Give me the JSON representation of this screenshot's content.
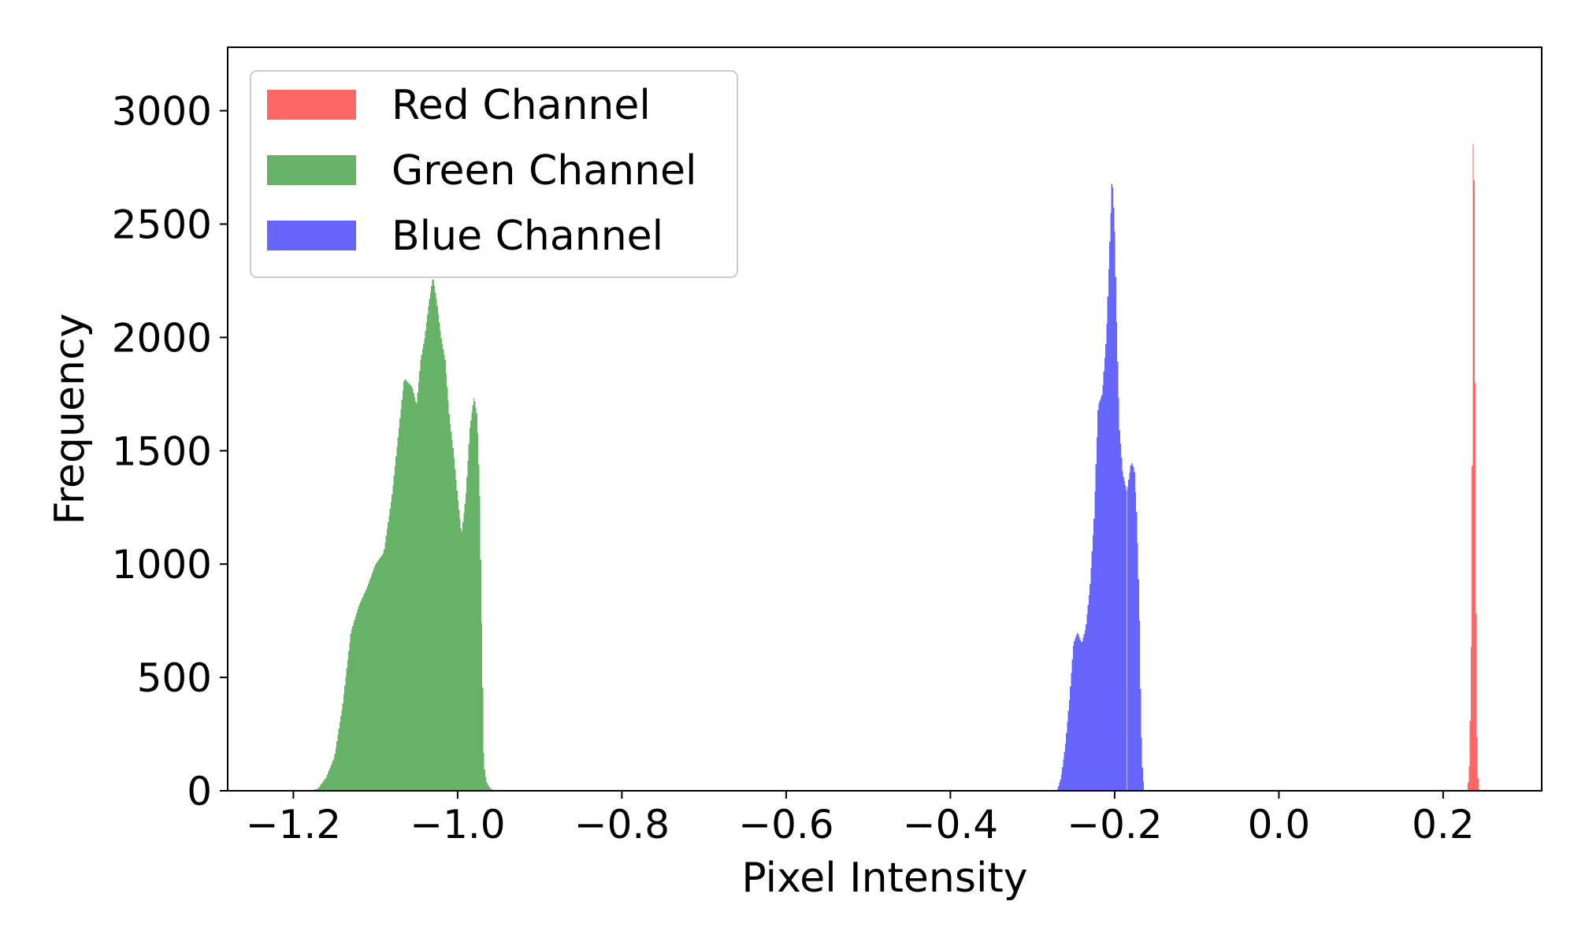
{
  "chart_data": {
    "type": "histogram",
    "title": "",
    "xlabel": "Pixel Intensity",
    "ylabel": "Frequency",
    "xlim": [
      -1.28,
      0.32
    ],
    "ylim": [
      0,
      3280
    ],
    "x_ticks": [
      -1.2,
      -1.0,
      -0.8,
      -0.6,
      -0.4,
      -0.2,
      0.0,
      0.2
    ],
    "x_tick_labels": [
      "−1.2",
      "−1.0",
      "−0.8",
      "−0.6",
      "−0.4",
      "−0.2",
      "0.0",
      "0.2"
    ],
    "y_ticks": [
      0,
      500,
      1000,
      1500,
      2000,
      2500,
      3000
    ],
    "y_tick_labels": [
      "0",
      "500",
      "1000",
      "1500",
      "2000",
      "2500",
      "3000"
    ],
    "grid": false,
    "legend_position": "top-left",
    "series": [
      {
        "name": "Red Channel",
        "color": "#ff6666",
        "profile": [
          [
            0.23,
            0
          ],
          [
            0.232,
            120
          ],
          [
            0.234,
            500
          ],
          [
            0.2355,
            1500
          ],
          [
            0.2365,
            2800
          ],
          [
            0.237,
            3060
          ],
          [
            0.238,
            2600
          ],
          [
            0.239,
            1800
          ],
          [
            0.24,
            900
          ],
          [
            0.241,
            300
          ],
          [
            0.2425,
            60
          ],
          [
            0.244,
            0
          ]
        ]
      },
      {
        "name": "Green Channel",
        "color": "#66b266",
        "profile": [
          [
            -1.18,
            0
          ],
          [
            -1.17,
            10
          ],
          [
            -1.16,
            60
          ],
          [
            -1.15,
            150
          ],
          [
            -1.14,
            380
          ],
          [
            -1.13,
            700
          ],
          [
            -1.12,
            820
          ],
          [
            -1.11,
            900
          ],
          [
            -1.1,
            1000
          ],
          [
            -1.09,
            1050
          ],
          [
            -1.08,
            1300
          ],
          [
            -1.07,
            1650
          ],
          [
            -1.065,
            1820
          ],
          [
            -1.06,
            1800
          ],
          [
            -1.055,
            1780
          ],
          [
            -1.05,
            1700
          ],
          [
            -1.045,
            1900
          ],
          [
            -1.04,
            2000
          ],
          [
            -1.035,
            2150
          ],
          [
            -1.03,
            2270
          ],
          [
            -1.025,
            2150
          ],
          [
            -1.02,
            2000
          ],
          [
            -1.015,
            1900
          ],
          [
            -1.01,
            1650
          ],
          [
            -1.005,
            1500
          ],
          [
            -1.0,
            1300
          ],
          [
            -0.995,
            1130
          ],
          [
            -0.99,
            1300
          ],
          [
            -0.985,
            1600
          ],
          [
            -0.98,
            1740
          ],
          [
            -0.976,
            1650
          ],
          [
            -0.973,
            1300
          ],
          [
            -0.97,
            600
          ],
          [
            -0.968,
            120
          ],
          [
            -0.965,
            40
          ],
          [
            -0.96,
            10
          ],
          [
            -0.955,
            0
          ]
        ]
      },
      {
        "name": "Blue Channel",
        "color": "#6666ff",
        "profile": [
          [
            -0.27,
            0
          ],
          [
            -0.265,
            60
          ],
          [
            -0.26,
            200
          ],
          [
            -0.255,
            400
          ],
          [
            -0.25,
            650
          ],
          [
            -0.245,
            700
          ],
          [
            -0.24,
            650
          ],
          [
            -0.235,
            720
          ],
          [
            -0.23,
            900
          ],
          [
            -0.225,
            1200
          ],
          [
            -0.22,
            1700
          ],
          [
            -0.215,
            1750
          ],
          [
            -0.21,
            2000
          ],
          [
            -0.206,
            2400
          ],
          [
            -0.203,
            2720
          ],
          [
            -0.2,
            2500
          ],
          [
            -0.197,
            2000
          ],
          [
            -0.194,
            1600
          ],
          [
            -0.19,
            1400
          ],
          [
            -0.185,
            1320
          ],
          [
            -0.18,
            1450
          ],
          [
            -0.176,
            1420
          ],
          [
            -0.173,
            1200
          ],
          [
            -0.17,
            800
          ],
          [
            -0.168,
            300
          ],
          [
            -0.166,
            80
          ],
          [
            -0.164,
            0
          ]
        ]
      }
    ]
  }
}
